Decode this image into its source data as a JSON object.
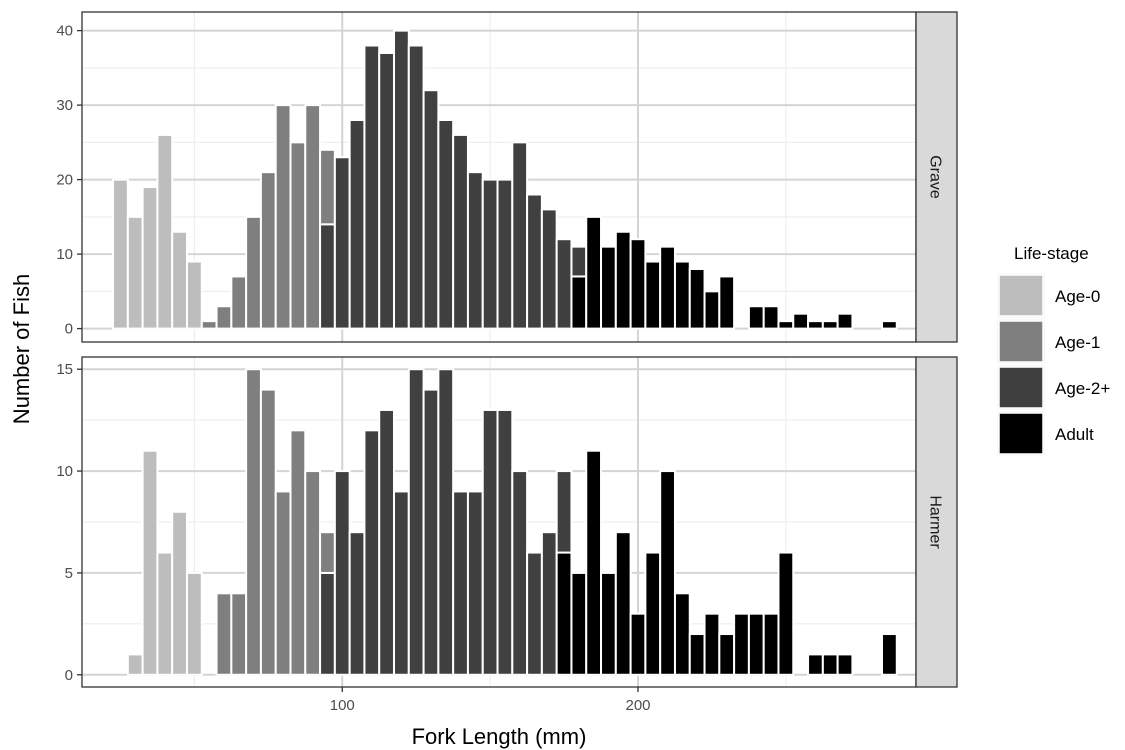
{
  "chart_data": {
    "type": "bar",
    "xlabel": "Fork Length (mm)",
    "ylabel": "Number of Fish",
    "xlim": [
      12,
      294
    ],
    "x_ticks": [
      100,
      200
    ],
    "grid": true,
    "legend": {
      "title": "Life-stage",
      "position": "right",
      "entries": [
        {
          "name": "Age-0",
          "color": "#bdbdbd"
        },
        {
          "name": "Age-1",
          "color": "#7f7f7f"
        },
        {
          "name": "Age-2+",
          "color": "#404040"
        },
        {
          "name": "Adult",
          "color": "#000000"
        }
      ]
    },
    "bin_width": 5,
    "panels": [
      {
        "facet": "Grave",
        "ylim": [
          -1.8,
          42.5
        ],
        "y_ticks": [
          0,
          10,
          20,
          30,
          40
        ],
        "bars": [
          {
            "x": 25,
            "Age-0": 20
          },
          {
            "x": 30,
            "Age-0": 15
          },
          {
            "x": 35,
            "Age-0": 19
          },
          {
            "x": 40,
            "Age-0": 26
          },
          {
            "x": 45,
            "Age-0": 13
          },
          {
            "x": 50,
            "Age-0": 9
          },
          {
            "x": 55,
            "Age-1": 1
          },
          {
            "x": 60,
            "Age-1": 3
          },
          {
            "x": 65,
            "Age-1": 7
          },
          {
            "x": 70,
            "Age-1": 15
          },
          {
            "x": 75,
            "Age-1": 21
          },
          {
            "x": 80,
            "Age-1": 30
          },
          {
            "x": 85,
            "Age-1": 25
          },
          {
            "x": 90,
            "Age-1": 30
          },
          {
            "x": 95,
            "Age-1": 10,
            "Age-2+": 14
          },
          {
            "x": 100,
            "Age-2+": 23
          },
          {
            "x": 105,
            "Age-2+": 28
          },
          {
            "x": 110,
            "Age-2+": 38
          },
          {
            "x": 115,
            "Age-2+": 37
          },
          {
            "x": 120,
            "Age-2+": 40
          },
          {
            "x": 125,
            "Age-2+": 38
          },
          {
            "x": 130,
            "Age-2+": 32
          },
          {
            "x": 135,
            "Age-2+": 28
          },
          {
            "x": 140,
            "Age-2+": 26
          },
          {
            "x": 145,
            "Age-2+": 21
          },
          {
            "x": 150,
            "Age-2+": 20
          },
          {
            "x": 155,
            "Age-2+": 20
          },
          {
            "x": 160,
            "Age-2+": 25
          },
          {
            "x": 165,
            "Age-2+": 18
          },
          {
            "x": 170,
            "Age-2+": 16
          },
          {
            "x": 175,
            "Age-2+": 12
          },
          {
            "x": 180,
            "Age-2+": 4,
            "Adult": 7
          },
          {
            "x": 185,
            "Adult": 15
          },
          {
            "x": 190,
            "Adult": 11
          },
          {
            "x": 195,
            "Adult": 13
          },
          {
            "x": 200,
            "Adult": 12
          },
          {
            "x": 205,
            "Adult": 9
          },
          {
            "x": 210,
            "Adult": 11
          },
          {
            "x": 215,
            "Adult": 9
          },
          {
            "x": 220,
            "Adult": 8
          },
          {
            "x": 225,
            "Adult": 5
          },
          {
            "x": 230,
            "Adult": 7
          },
          {
            "x": 240,
            "Adult": 3
          },
          {
            "x": 245,
            "Adult": 3
          },
          {
            "x": 250,
            "Adult": 1
          },
          {
            "x": 255,
            "Adult": 2
          },
          {
            "x": 260,
            "Adult": 1
          },
          {
            "x": 265,
            "Adult": 1
          },
          {
            "x": 270,
            "Adult": 2
          },
          {
            "x": 285,
            "Adult": 1
          }
        ]
      },
      {
        "facet": "Harmer",
        "ylim": [
          -0.6,
          15.6
        ],
        "y_ticks": [
          0,
          5,
          10,
          15
        ],
        "bars": [
          {
            "x": 30,
            "Age-0": 1
          },
          {
            "x": 35,
            "Age-0": 11
          },
          {
            "x": 40,
            "Age-0": 6
          },
          {
            "x": 45,
            "Age-0": 8
          },
          {
            "x": 50,
            "Age-0": 5
          },
          {
            "x": 60,
            "Age-1": 4
          },
          {
            "x": 65,
            "Age-1": 4
          },
          {
            "x": 70,
            "Age-1": 15
          },
          {
            "x": 75,
            "Age-1": 14
          },
          {
            "x": 80,
            "Age-1": 9
          },
          {
            "x": 85,
            "Age-1": 12
          },
          {
            "x": 90,
            "Age-1": 10
          },
          {
            "x": 95,
            "Age-1": 2,
            "Age-2+": 5
          },
          {
            "x": 100,
            "Age-2+": 10
          },
          {
            "x": 105,
            "Age-2+": 7
          },
          {
            "x": 110,
            "Age-2+": 12
          },
          {
            "x": 115,
            "Age-2+": 13
          },
          {
            "x": 120,
            "Age-2+": 9
          },
          {
            "x": 125,
            "Age-2+": 15
          },
          {
            "x": 130,
            "Age-2+": 14
          },
          {
            "x": 135,
            "Age-2+": 15
          },
          {
            "x": 140,
            "Age-2+": 9
          },
          {
            "x": 145,
            "Age-2+": 9
          },
          {
            "x": 150,
            "Age-2+": 13
          },
          {
            "x": 155,
            "Age-2+": 13
          },
          {
            "x": 160,
            "Age-2+": 10
          },
          {
            "x": 165,
            "Age-2+": 6
          },
          {
            "x": 170,
            "Age-2+": 7
          },
          {
            "x": 175,
            "Age-2+": 4,
            "Adult": 6
          },
          {
            "x": 180,
            "Adult": 5
          },
          {
            "x": 185,
            "Adult": 11
          },
          {
            "x": 190,
            "Adult": 5
          },
          {
            "x": 195,
            "Adult": 7
          },
          {
            "x": 200,
            "Adult": 3
          },
          {
            "x": 205,
            "Adult": 6
          },
          {
            "x": 210,
            "Adult": 10
          },
          {
            "x": 215,
            "Adult": 4
          },
          {
            "x": 220,
            "Adult": 2
          },
          {
            "x": 225,
            "Adult": 3
          },
          {
            "x": 230,
            "Adult": 2
          },
          {
            "x": 235,
            "Adult": 3
          },
          {
            "x": 240,
            "Adult": 3
          },
          {
            "x": 245,
            "Adult": 3
          },
          {
            "x": 250,
            "Adult": 6
          },
          {
            "x": 260,
            "Adult": 1
          },
          {
            "x": 265,
            "Adult": 1
          },
          {
            "x": 270,
            "Adult": 1
          },
          {
            "x": 285,
            "Adult": 2
          }
        ]
      }
    ]
  }
}
